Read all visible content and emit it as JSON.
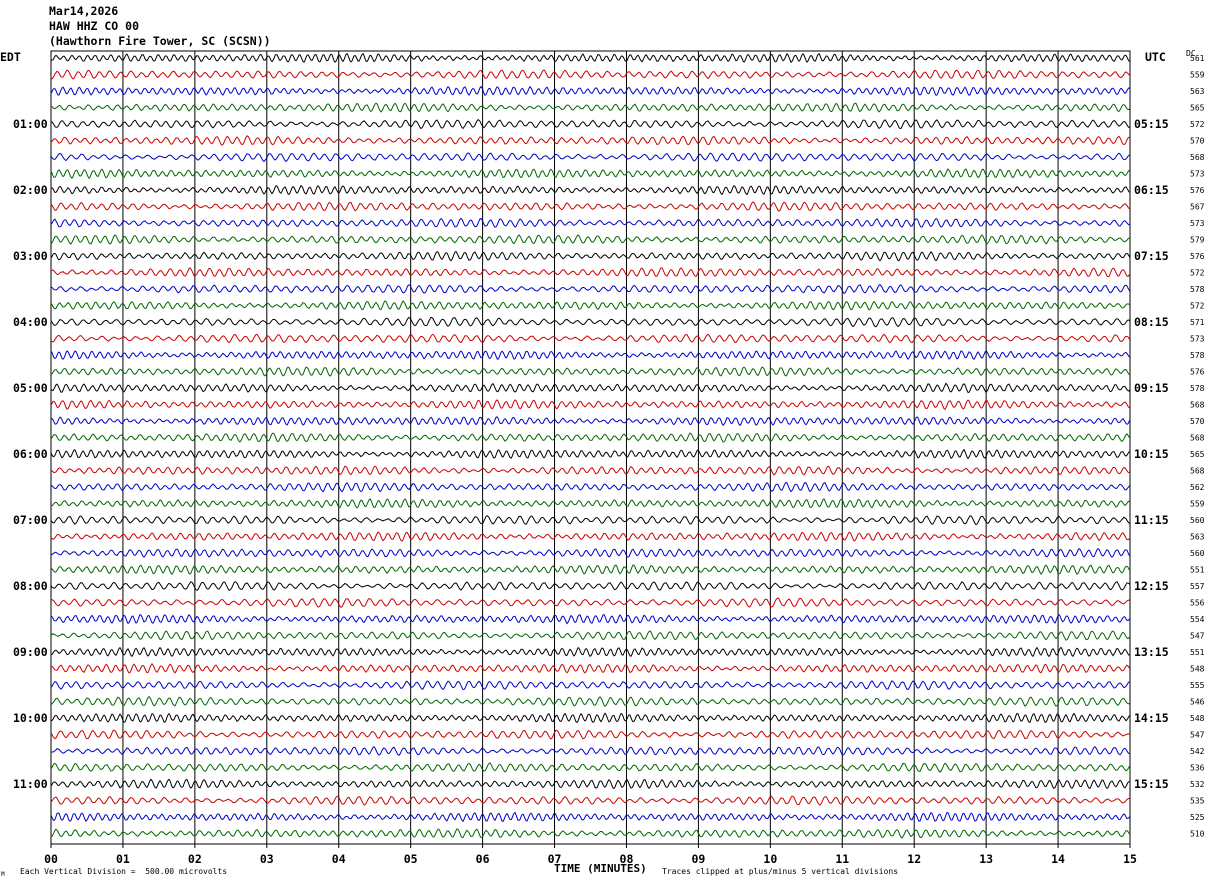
{
  "header": {
    "date": "Mar14,2026",
    "channel": "HAW HHZ CO 00",
    "station": "(Hawthorn Fire Tower, SC (SCSN))"
  },
  "left_zone": "EDT",
  "right_zone": "UTC",
  "dc_label": "DC",
  "footer": {
    "scale": "Each Vertical Division =  500.00 microvolts",
    "xlabel": "TIME (MINUTES)",
    "clip_note": "Traces clipped at plus/minus 5 vertical divisions",
    "corner_mark": "M"
  },
  "colors": {
    "black": "#000000",
    "red": "#cc0000",
    "blue": "#0000cc",
    "green": "#006600",
    "grid": "#000000"
  },
  "chart_data": {
    "type": "line",
    "xlim": [
      0,
      15
    ],
    "x_ticks": [
      "00",
      "01",
      "02",
      "03",
      "04",
      "05",
      "06",
      "07",
      "08",
      "09",
      "10",
      "11",
      "12",
      "13",
      "14",
      "15"
    ],
    "trace_color_cycle": [
      "black",
      "red",
      "blue",
      "green"
    ],
    "left_hour_labels": [
      "01:00",
      "02:00",
      "03:00",
      "04:00",
      "05:00",
      "06:00",
      "07:00",
      "08:00",
      "09:00",
      "10:00",
      "11:00"
    ],
    "right_hour_labels": [
      "05:15",
      "06:15",
      "07:15",
      "08:15",
      "09:15",
      "10:15",
      "11:15",
      "12:15",
      "13:15",
      "14:15",
      "15:15"
    ],
    "hour_label_rows": [
      4,
      8,
      12,
      16,
      20,
      24,
      28,
      32,
      36,
      40,
      44
    ],
    "dc_offsets": [
      561,
      559,
      563,
      565,
      572,
      570,
      568,
      573,
      576,
      567,
      573,
      579,
      576,
      572,
      578,
      572,
      571,
      573,
      578,
      576,
      578,
      568,
      570,
      568,
      565,
      568,
      562,
      559,
      560,
      563,
      560,
      551,
      557,
      556,
      554,
      547,
      551,
      548,
      555,
      546,
      548,
      547,
      542,
      536,
      532,
      535,
      525,
      510
    ]
  }
}
